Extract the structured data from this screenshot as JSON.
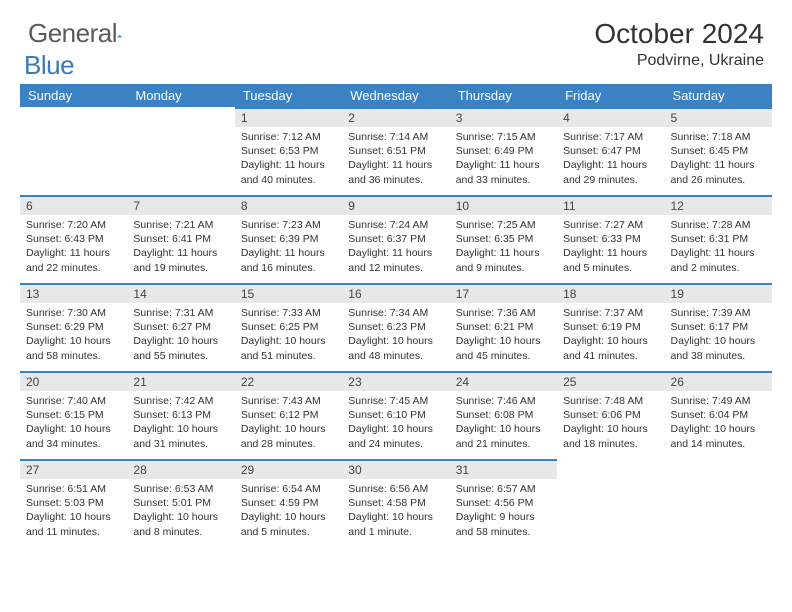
{
  "brand": {
    "main": "General",
    "sub": "Blue"
  },
  "title": "October 2024",
  "subtitle": "Podvirne, Ukraine",
  "colors": {
    "header_bg": "#3a82c4",
    "header_fg": "#ffffff",
    "daynum_bg": "#e8e8e8",
    "border_top": "#3a82c4",
    "logo_gray": "#5a5a5a",
    "logo_blue": "#3a7ab8"
  },
  "weekdays": [
    "Sunday",
    "Monday",
    "Tuesday",
    "Wednesday",
    "Thursday",
    "Friday",
    "Saturday"
  ],
  "weeks": [
    [
      {
        "n": "",
        "l1": "",
        "l2": "",
        "l3": "",
        "l4": ""
      },
      {
        "n": "",
        "l1": "",
        "l2": "",
        "l3": "",
        "l4": ""
      },
      {
        "n": "1",
        "l1": "Sunrise: 7:12 AM",
        "l2": "Sunset: 6:53 PM",
        "l3": "Daylight: 11 hours",
        "l4": "and 40 minutes."
      },
      {
        "n": "2",
        "l1": "Sunrise: 7:14 AM",
        "l2": "Sunset: 6:51 PM",
        "l3": "Daylight: 11 hours",
        "l4": "and 36 minutes."
      },
      {
        "n": "3",
        "l1": "Sunrise: 7:15 AM",
        "l2": "Sunset: 6:49 PM",
        "l3": "Daylight: 11 hours",
        "l4": "and 33 minutes."
      },
      {
        "n": "4",
        "l1": "Sunrise: 7:17 AM",
        "l2": "Sunset: 6:47 PM",
        "l3": "Daylight: 11 hours",
        "l4": "and 29 minutes."
      },
      {
        "n": "5",
        "l1": "Sunrise: 7:18 AM",
        "l2": "Sunset: 6:45 PM",
        "l3": "Daylight: 11 hours",
        "l4": "and 26 minutes."
      }
    ],
    [
      {
        "n": "6",
        "l1": "Sunrise: 7:20 AM",
        "l2": "Sunset: 6:43 PM",
        "l3": "Daylight: 11 hours",
        "l4": "and 22 minutes."
      },
      {
        "n": "7",
        "l1": "Sunrise: 7:21 AM",
        "l2": "Sunset: 6:41 PM",
        "l3": "Daylight: 11 hours",
        "l4": "and 19 minutes."
      },
      {
        "n": "8",
        "l1": "Sunrise: 7:23 AM",
        "l2": "Sunset: 6:39 PM",
        "l3": "Daylight: 11 hours",
        "l4": "and 16 minutes."
      },
      {
        "n": "9",
        "l1": "Sunrise: 7:24 AM",
        "l2": "Sunset: 6:37 PM",
        "l3": "Daylight: 11 hours",
        "l4": "and 12 minutes."
      },
      {
        "n": "10",
        "l1": "Sunrise: 7:25 AM",
        "l2": "Sunset: 6:35 PM",
        "l3": "Daylight: 11 hours",
        "l4": "and 9 minutes."
      },
      {
        "n": "11",
        "l1": "Sunrise: 7:27 AM",
        "l2": "Sunset: 6:33 PM",
        "l3": "Daylight: 11 hours",
        "l4": "and 5 minutes."
      },
      {
        "n": "12",
        "l1": "Sunrise: 7:28 AM",
        "l2": "Sunset: 6:31 PM",
        "l3": "Daylight: 11 hours",
        "l4": "and 2 minutes."
      }
    ],
    [
      {
        "n": "13",
        "l1": "Sunrise: 7:30 AM",
        "l2": "Sunset: 6:29 PM",
        "l3": "Daylight: 10 hours",
        "l4": "and 58 minutes."
      },
      {
        "n": "14",
        "l1": "Sunrise: 7:31 AM",
        "l2": "Sunset: 6:27 PM",
        "l3": "Daylight: 10 hours",
        "l4": "and 55 minutes."
      },
      {
        "n": "15",
        "l1": "Sunrise: 7:33 AM",
        "l2": "Sunset: 6:25 PM",
        "l3": "Daylight: 10 hours",
        "l4": "and 51 minutes."
      },
      {
        "n": "16",
        "l1": "Sunrise: 7:34 AM",
        "l2": "Sunset: 6:23 PM",
        "l3": "Daylight: 10 hours",
        "l4": "and 48 minutes."
      },
      {
        "n": "17",
        "l1": "Sunrise: 7:36 AM",
        "l2": "Sunset: 6:21 PM",
        "l3": "Daylight: 10 hours",
        "l4": "and 45 minutes."
      },
      {
        "n": "18",
        "l1": "Sunrise: 7:37 AM",
        "l2": "Sunset: 6:19 PM",
        "l3": "Daylight: 10 hours",
        "l4": "and 41 minutes."
      },
      {
        "n": "19",
        "l1": "Sunrise: 7:39 AM",
        "l2": "Sunset: 6:17 PM",
        "l3": "Daylight: 10 hours",
        "l4": "and 38 minutes."
      }
    ],
    [
      {
        "n": "20",
        "l1": "Sunrise: 7:40 AM",
        "l2": "Sunset: 6:15 PM",
        "l3": "Daylight: 10 hours",
        "l4": "and 34 minutes."
      },
      {
        "n": "21",
        "l1": "Sunrise: 7:42 AM",
        "l2": "Sunset: 6:13 PM",
        "l3": "Daylight: 10 hours",
        "l4": "and 31 minutes."
      },
      {
        "n": "22",
        "l1": "Sunrise: 7:43 AM",
        "l2": "Sunset: 6:12 PM",
        "l3": "Daylight: 10 hours",
        "l4": "and 28 minutes."
      },
      {
        "n": "23",
        "l1": "Sunrise: 7:45 AM",
        "l2": "Sunset: 6:10 PM",
        "l3": "Daylight: 10 hours",
        "l4": "and 24 minutes."
      },
      {
        "n": "24",
        "l1": "Sunrise: 7:46 AM",
        "l2": "Sunset: 6:08 PM",
        "l3": "Daylight: 10 hours",
        "l4": "and 21 minutes."
      },
      {
        "n": "25",
        "l1": "Sunrise: 7:48 AM",
        "l2": "Sunset: 6:06 PM",
        "l3": "Daylight: 10 hours",
        "l4": "and 18 minutes."
      },
      {
        "n": "26",
        "l1": "Sunrise: 7:49 AM",
        "l2": "Sunset: 6:04 PM",
        "l3": "Daylight: 10 hours",
        "l4": "and 14 minutes."
      }
    ],
    [
      {
        "n": "27",
        "l1": "Sunrise: 6:51 AM",
        "l2": "Sunset: 5:03 PM",
        "l3": "Daylight: 10 hours",
        "l4": "and 11 minutes."
      },
      {
        "n": "28",
        "l1": "Sunrise: 6:53 AM",
        "l2": "Sunset: 5:01 PM",
        "l3": "Daylight: 10 hours",
        "l4": "and 8 minutes."
      },
      {
        "n": "29",
        "l1": "Sunrise: 6:54 AM",
        "l2": "Sunset: 4:59 PM",
        "l3": "Daylight: 10 hours",
        "l4": "and 5 minutes."
      },
      {
        "n": "30",
        "l1": "Sunrise: 6:56 AM",
        "l2": "Sunset: 4:58 PM",
        "l3": "Daylight: 10 hours",
        "l4": "and 1 minute."
      },
      {
        "n": "31",
        "l1": "Sunrise: 6:57 AM",
        "l2": "Sunset: 4:56 PM",
        "l3": "Daylight: 9 hours",
        "l4": "and 58 minutes."
      },
      {
        "n": "",
        "l1": "",
        "l2": "",
        "l3": "",
        "l4": ""
      },
      {
        "n": "",
        "l1": "",
        "l2": "",
        "l3": "",
        "l4": ""
      }
    ]
  ]
}
